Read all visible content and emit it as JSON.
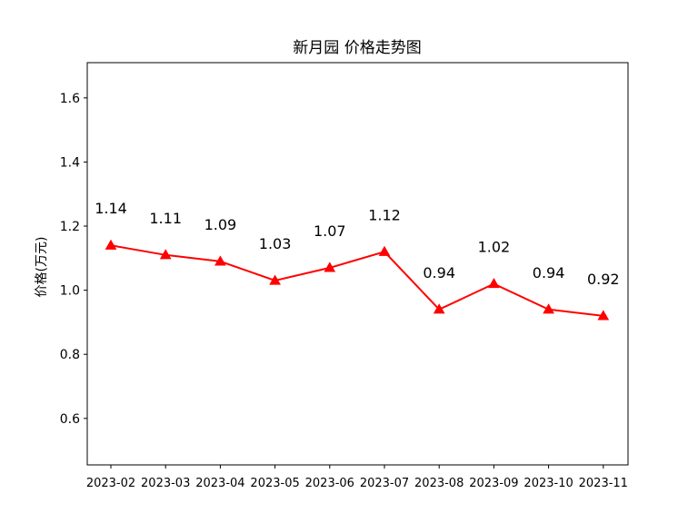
{
  "chart_data": {
    "type": "line",
    "title": "新月园 价格走势图",
    "xlabel": "",
    "ylabel": "价格(万元)",
    "categories": [
      "2023-02",
      "2023-03",
      "2023-04",
      "2023-05",
      "2023-06",
      "2023-07",
      "2023-08",
      "2023-09",
      "2023-10",
      "2023-11"
    ],
    "series": [
      {
        "values": [
          1.14,
          1.11,
          1.09,
          1.03,
          1.07,
          1.12,
          0.94,
          1.02,
          0.94,
          0.92
        ],
        "color": "#ff0000",
        "marker": "triangle-up"
      }
    ],
    "data_labels": [
      "1.14",
      "1.11",
      "1.09",
      "1.03",
      "1.07",
      "1.12",
      "0.94",
      "1.02",
      "0.94",
      "0.92"
    ],
    "yticks": [
      "0.6",
      "0.8",
      "1.0",
      "1.2",
      "1.4",
      "1.6"
    ],
    "ylim": [
      0.455,
      1.71
    ],
    "grid": false,
    "legend": "none"
  }
}
